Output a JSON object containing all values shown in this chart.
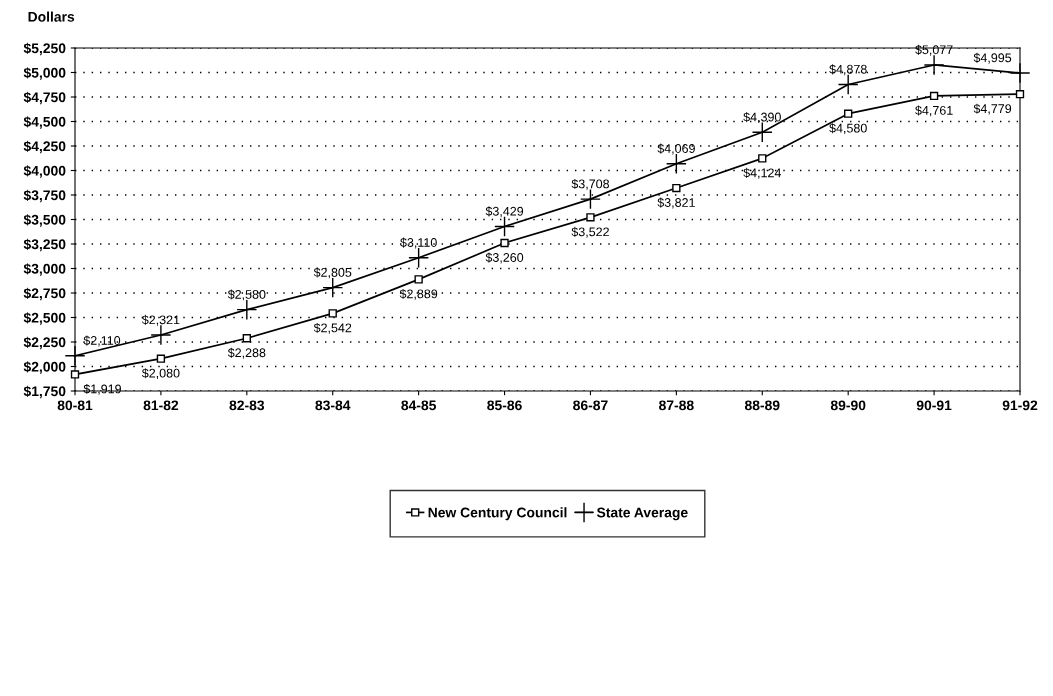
{
  "chart_data": {
    "type": "line",
    "ylabel": "Dollars",
    "categories": [
      "80-81",
      "81-82",
      "82-83",
      "83-84",
      "84-85",
      "85-86",
      "86-87",
      "87-88",
      "88-89",
      "89-90",
      "90-91",
      "91-92"
    ],
    "series": [
      {
        "name": "New Century Council",
        "color": "#000000",
        "marker": "square",
        "values": [
          1919,
          2080,
          2288,
          2542,
          2889,
          3260,
          3522,
          3821,
          4124,
          4580,
          4761,
          4779
        ],
        "value_labels": [
          "$1,919",
          "$2,080",
          "$2,288",
          "$2,542",
          "$2,889",
          "$3,260",
          "$3,522",
          "$3,821",
          "$4,124",
          "$4,580",
          "$4,761",
          "$4,779"
        ]
      },
      {
        "name": "State Average",
        "color": "#000000",
        "marker": "cross",
        "values": [
          2110,
          2321,
          2580,
          2805,
          3110,
          3429,
          3708,
          4069,
          4390,
          4878,
          5077,
          4995
        ],
        "value_labels": [
          "$2,110",
          "$2,321",
          "$2,580",
          "$2,805",
          "$3,110",
          "$3,429",
          "$3,708",
          "$4,069",
          "$4,390",
          "$4,878",
          "$5,077",
          "$4,995"
        ]
      }
    ],
    "ylim": [
      1750,
      5250
    ],
    "yticks": [
      {
        "value": 1750,
        "label": "$1,750"
      },
      {
        "value": 2000,
        "label": "$2,000"
      },
      {
        "value": 2250,
        "label": "$2,250"
      },
      {
        "value": 2500,
        "label": "$2,500"
      },
      {
        "value": 2750,
        "label": "$2,750"
      },
      {
        "value": 3000,
        "label": "$3,000"
      },
      {
        "value": 3250,
        "label": "$3,250"
      },
      {
        "value": 3500,
        "label": "$3,500"
      },
      {
        "value": 3750,
        "label": "$3,750"
      },
      {
        "value": 4000,
        "label": "$4,000"
      },
      {
        "value": 4250,
        "label": "$4,250"
      },
      {
        "value": 4500,
        "label": "$4,500"
      },
      {
        "value": 4750,
        "label": "$4,750"
      },
      {
        "value": 5000,
        "label": "$5,000"
      },
      {
        "value": 5250,
        "label": "$5,250"
      }
    ],
    "grid": "y",
    "legend": "bottom",
    "line_style": "solid"
  }
}
